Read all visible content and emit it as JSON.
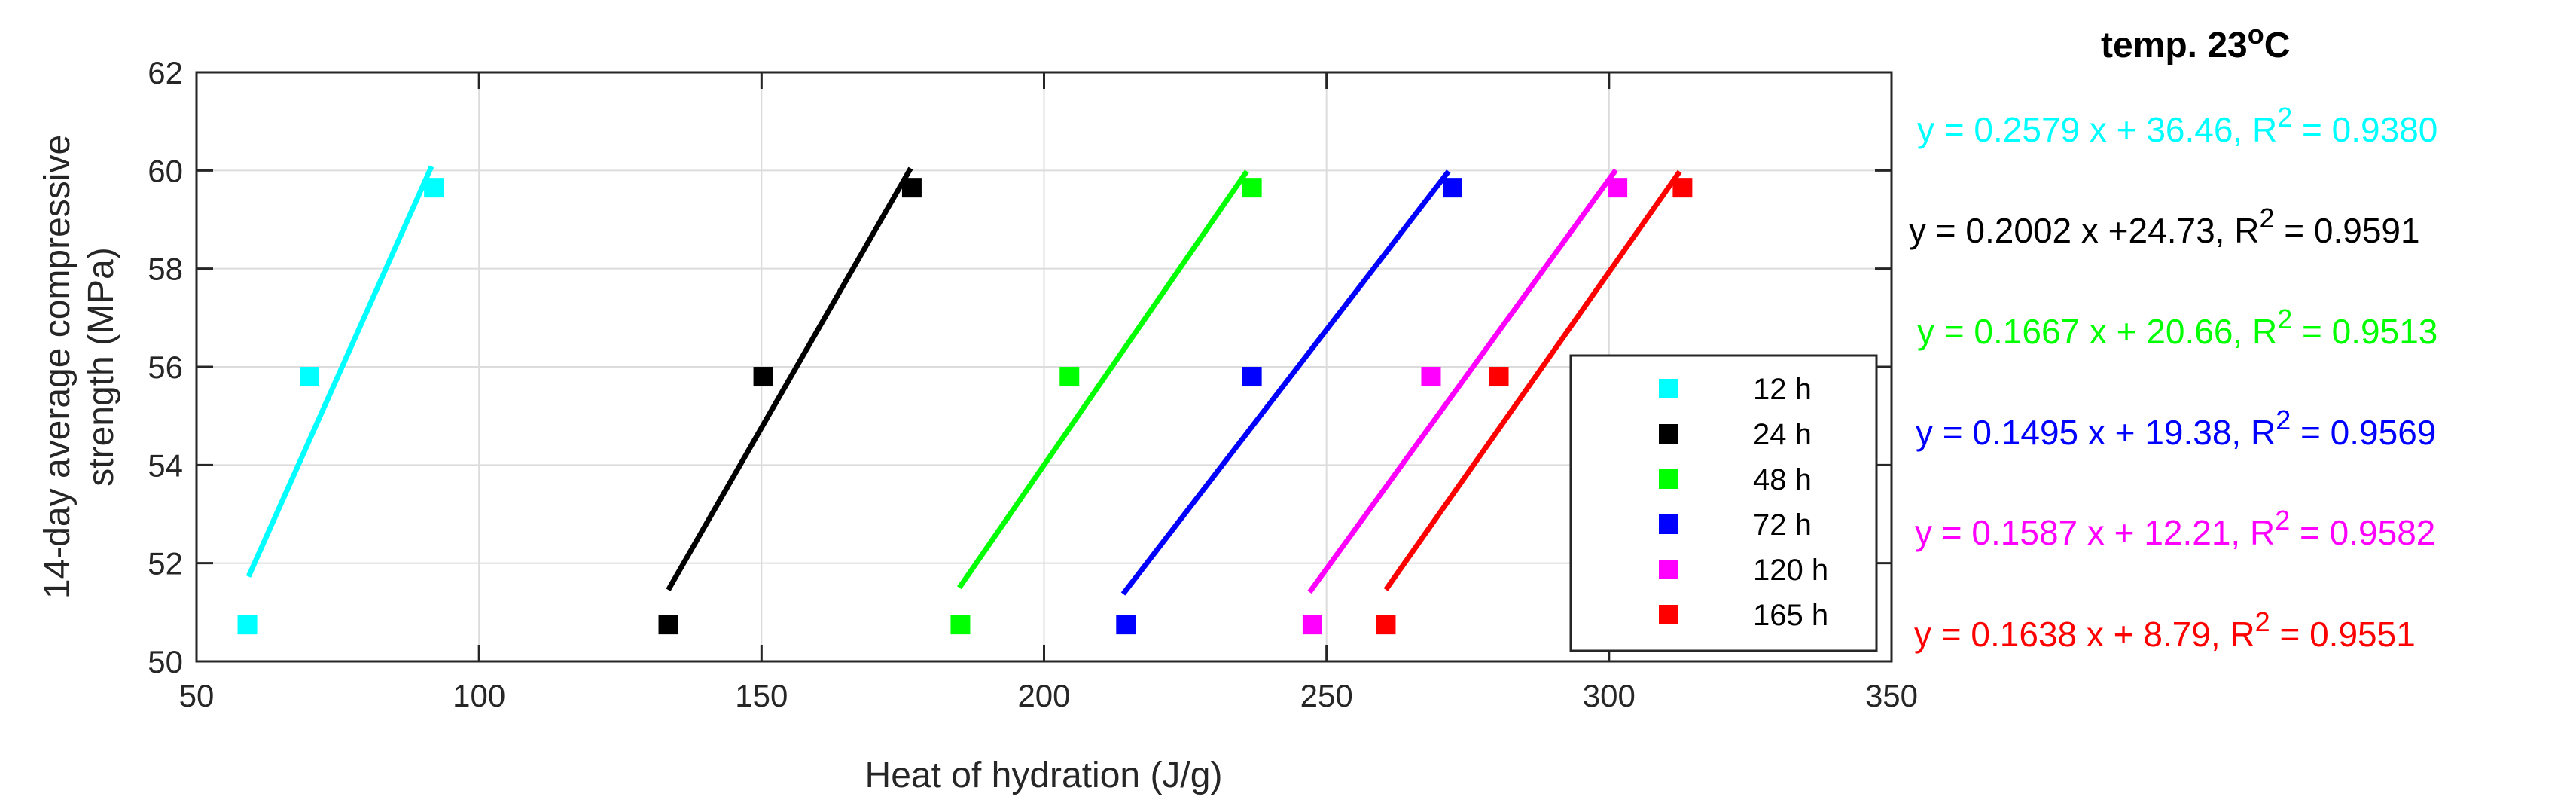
{
  "chart_data": {
    "type": "scatter",
    "title": "temp. 23",
    "title_superscript": "o",
    "title_suffix": "C",
    "xlabel": "Heat of hydration (J/g)",
    "ylabel_line1": "14-day average compressive",
    "ylabel_line2": "strength (MPa)",
    "xlim": [
      50,
      350
    ],
    "ylim": [
      50,
      62
    ],
    "xticks": [
      50,
      100,
      150,
      200,
      250,
      300,
      350
    ],
    "yticks": [
      50,
      52,
      54,
      56,
      58,
      60,
      62
    ],
    "xtick_labels": [
      "50",
      "100",
      "150",
      "200",
      "250",
      "300",
      "350"
    ],
    "ytick_labels": [
      "50",
      "52",
      "54",
      "56",
      "58",
      "60",
      "62"
    ],
    "grid": true,
    "legend_position": "lower-right",
    "series": [
      {
        "name": "12 h",
        "color": "#00FFFF",
        "x": [
          59,
          70,
          92
        ],
        "y": [
          50.75,
          55.8,
          59.65
        ],
        "fit_slope": 0.2579,
        "fit_intercept": 36.46,
        "fit_x_range": [
          59.2,
          91.6
        ],
        "equation": "y = 0.2579 x + 36.46, R",
        "r2": " = 0.9380"
      },
      {
        "name": "24 h",
        "color": "#000000",
        "x": [
          133.5,
          150.3,
          176.6
        ],
        "y": [
          50.75,
          55.8,
          59.65
        ],
        "fit_slope": 0.2002,
        "fit_intercept": 24.73,
        "fit_x_range": [
          133.5,
          176.4
        ],
        "equation": "y = 0.2002 x +24.73, R",
        "r2": " = 0.9591"
      },
      {
        "name": "48 h",
        "color": "#00FF00",
        "x": [
          185.2,
          204.5,
          236.8
        ],
        "y": [
          50.75,
          55.8,
          59.65
        ],
        "fit_slope": 0.1667,
        "fit_intercept": 20.66,
        "fit_x_range": [
          185.0,
          235.9
        ],
        "equation": "y = 0.1667 x + 20.66, R",
        "r2": " = 0.9513"
      },
      {
        "name": "72 h",
        "color": "#0000FF",
        "x": [
          214.5,
          236.8,
          272.3
        ],
        "y": [
          50.75,
          55.8,
          59.65
        ],
        "fit_slope": 0.1495,
        "fit_intercept": 19.38,
        "fit_x_range": [
          214.0,
          271.6
        ],
        "equation": "y = 0.1495 x + 19.38, R",
        "r2": " = 0.9569"
      },
      {
        "name": "120 h",
        "color": "#FF00FF",
        "x": [
          247.5,
          268.5,
          301.5
        ],
        "y": [
          50.75,
          55.8,
          59.65
        ],
        "fit_slope": 0.1587,
        "fit_intercept": 12.21,
        "fit_x_range": [
          247.0,
          301.2
        ],
        "equation": "y = 0.1587 x + 12.21, R",
        "r2": " = 0.9582"
      },
      {
        "name": "165 h",
        "color": "#FF0000",
        "x": [
          260.5,
          280.5,
          313.0
        ],
        "y": [
          50.75,
          55.8,
          59.65
        ],
        "fit_slope": 0.1638,
        "fit_intercept": 8.79,
        "fit_x_range": [
          260.5,
          312.5
        ],
        "equation": "y = 0.1638 x + 8.79, R",
        "r2": " = 0.9551"
      }
    ]
  }
}
